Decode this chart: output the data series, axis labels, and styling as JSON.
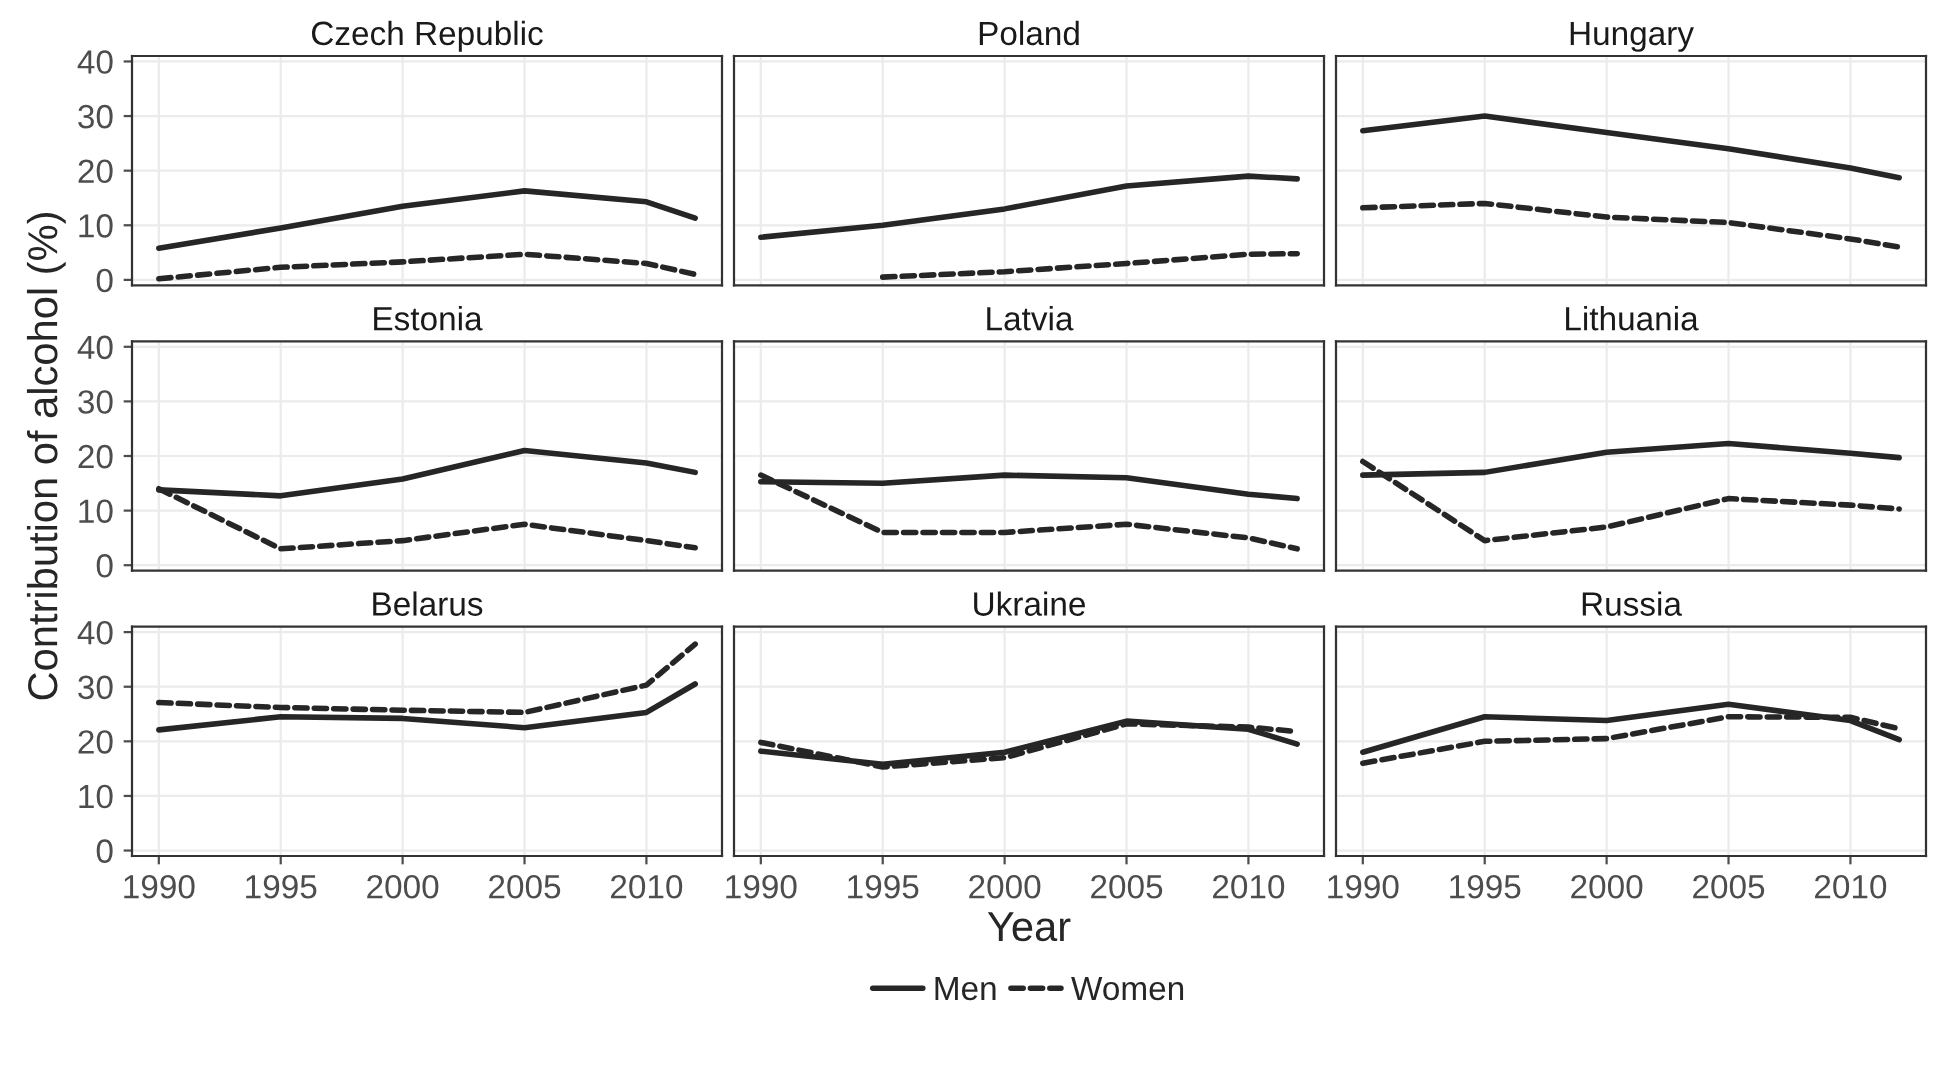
{
  "chart_data": [
    {
      "type": "line",
      "title": "Czech Republic",
      "legend": "bottom",
      "x": [
        1990,
        1995,
        2000,
        2005,
        2010,
        2012
      ],
      "xlim": [
        1988.9,
        2013.1
      ],
      "ylim": [
        -1,
        41
      ],
      "xticks": [
        1990,
        1995,
        2000,
        2005,
        2010
      ],
      "yticks": [
        0,
        10,
        20,
        30,
        40
      ],
      "tick_labels": "y",
      "grid": true,
      "series": [
        {
          "name": "Men",
          "color": "#262626",
          "line_style": "solid",
          "values": [
            5.8,
            9.5,
            13.5,
            16.3,
            14.3,
            11.3
          ]
        },
        {
          "name": "Women",
          "color": "#262626",
          "line_style": "dashed",
          "values": [
            0.2,
            2.3,
            3.3,
            4.7,
            3.0,
            1.0
          ]
        }
      ]
    },
    {
      "type": "line",
      "title": "Poland",
      "x": [
        1990,
        1995,
        2000,
        2005,
        2010,
        2012
      ],
      "xlim": [
        1988.9,
        2013.1
      ],
      "ylim": [
        -1,
        41
      ],
      "xticks": [
        1990,
        1995,
        2000,
        2005,
        2010
      ],
      "yticks": [
        0,
        10,
        20,
        30,
        40
      ],
      "tick_labels": false,
      "grid": true,
      "series": [
        {
          "color": "#262626",
          "line_style": "solid",
          "values": [
            7.8,
            10.0,
            13.0,
            17.2,
            19.0,
            18.5
          ]
        },
        {
          "color": "#262626",
          "line_style": "dashed",
          "values": [
            null,
            0.5,
            1.5,
            3.0,
            4.7,
            4.8
          ]
        }
      ]
    },
    {
      "type": "line",
      "title": "Hungary",
      "x": [
        1990,
        1995,
        2000,
        2005,
        2010,
        2012
      ],
      "xlim": [
        1988.9,
        2013.1
      ],
      "ylim": [
        -1,
        41
      ],
      "xticks": [
        1990,
        1995,
        2000,
        2005,
        2010
      ],
      "yticks": [
        0,
        10,
        20,
        30,
        40
      ],
      "tick_labels": false,
      "grid": true,
      "series": [
        {
          "color": "#262626",
          "line_style": "solid",
          "values": [
            27.3,
            30.0,
            27.0,
            24.0,
            20.5,
            18.7
          ]
        },
        {
          "color": "#262626",
          "line_style": "dashed",
          "values": [
            13.2,
            14.0,
            11.5,
            10.5,
            7.5,
            6.0
          ]
        }
      ]
    },
    {
      "type": "line",
      "title": "Estonia",
      "ylabel": "Contribution of alcohol (%)",
      "x": [
        1990,
        1995,
        2000,
        2005,
        2010,
        2012
      ],
      "xlim": [
        1988.9,
        2013.1
      ],
      "ylim": [
        -1,
        41
      ],
      "xticks": [
        1990,
        1995,
        2000,
        2005,
        2010
      ],
      "yticks": [
        0,
        10,
        20,
        30,
        40
      ],
      "tick_labels": "y",
      "grid": true,
      "series": [
        {
          "color": "#262626",
          "line_style": "solid",
          "values": [
            13.8,
            12.7,
            15.8,
            21.0,
            18.7,
            17.0
          ]
        },
        {
          "color": "#262626",
          "line_style": "dashed",
          "values": [
            14.0,
            3.0,
            4.5,
            7.5,
            4.5,
            3.2
          ]
        }
      ]
    },
    {
      "type": "line",
      "title": "Latvia",
      "x": [
        1990,
        1995,
        2000,
        2005,
        2010,
        2012
      ],
      "xlim": [
        1988.9,
        2013.1
      ],
      "ylim": [
        -1,
        41
      ],
      "xticks": [
        1990,
        1995,
        2000,
        2005,
        2010
      ],
      "yticks": [
        0,
        10,
        20,
        30,
        40
      ],
      "tick_labels": false,
      "grid": true,
      "series": [
        {
          "color": "#262626",
          "line_style": "solid",
          "values": [
            15.3,
            15.0,
            16.5,
            16.0,
            13.0,
            12.2
          ]
        },
        {
          "color": "#262626",
          "line_style": "dashed",
          "values": [
            16.5,
            6.0,
            6.0,
            7.5,
            5.0,
            3.0
          ]
        }
      ]
    },
    {
      "type": "line",
      "title": "Lithuania",
      "x": [
        1990,
        1995,
        2000,
        2005,
        2010,
        2012
      ],
      "xlim": [
        1988.9,
        2013.1
      ],
      "ylim": [
        -1,
        41
      ],
      "xticks": [
        1990,
        1995,
        2000,
        2005,
        2010
      ],
      "yticks": [
        0,
        10,
        20,
        30,
        40
      ],
      "tick_labels": false,
      "grid": true,
      "series": [
        {
          "color": "#262626",
          "line_style": "solid",
          "values": [
            16.5,
            17.0,
            20.7,
            22.3,
            20.5,
            19.7
          ]
        },
        {
          "color": "#262626",
          "line_style": "dashed",
          "values": [
            19.0,
            4.5,
            7.0,
            12.2,
            11.0,
            10.3
          ]
        }
      ]
    },
    {
      "type": "line",
      "title": "Belarus",
      "x": [
        1990,
        1995,
        2000,
        2005,
        2010,
        2012
      ],
      "xlim": [
        1988.9,
        2013.1
      ],
      "ylim": [
        -1,
        41
      ],
      "xticks": [
        1990,
        1995,
        2000,
        2005,
        2010
      ],
      "yticks": [
        0,
        10,
        20,
        30,
        40
      ],
      "grid": true,
      "series": [
        {
          "color": "#262626",
          "line_style": "solid",
          "values": [
            22.1,
            24.5,
            24.2,
            22.5,
            25.3,
            30.5
          ]
        },
        {
          "color": "#262626",
          "line_style": "dashed",
          "values": [
            27.1,
            26.2,
            25.7,
            25.3,
            30.3,
            37.8
          ]
        }
      ]
    },
    {
      "type": "line",
      "title": "Ukraine",
      "xlabel": "Year",
      "x": [
        1990,
        1995,
        2000,
        2005,
        2010,
        2012
      ],
      "xlim": [
        1988.9,
        2013.1
      ],
      "ylim": [
        -1,
        41
      ],
      "xticks": [
        1990,
        1995,
        2000,
        2005,
        2010
      ],
      "yticks": [
        0,
        10,
        20,
        30,
        40
      ],
      "tick_labels": "x",
      "grid": true,
      "series": [
        {
          "color": "#262626",
          "line_style": "solid",
          "values": [
            18.2,
            15.8,
            18.0,
            23.7,
            22.2,
            19.5
          ]
        },
        {
          "color": "#262626",
          "line_style": "dashed",
          "values": [
            19.8,
            15.3,
            17.0,
            23.2,
            22.6,
            21.8
          ]
        }
      ]
    },
    {
      "type": "line",
      "title": "Russia",
      "x": [
        1990,
        1995,
        2000,
        2005,
        2010,
        2012
      ],
      "xlim": [
        1988.9,
        2013.1
      ],
      "ylim": [
        -1,
        41
      ],
      "xticks": [
        1990,
        1995,
        2000,
        2005,
        2010
      ],
      "yticks": [
        0,
        10,
        20,
        30,
        40
      ],
      "tick_labels": "x",
      "grid": true,
      "series": [
        {
          "color": "#262626",
          "line_style": "solid",
          "values": [
            18.0,
            24.5,
            23.8,
            26.8,
            23.8,
            20.3
          ]
        },
        {
          "color": "#262626",
          "line_style": "dashed",
          "values": [
            16.0,
            20.0,
            20.5,
            24.5,
            24.4,
            22.3
          ]
        }
      ]
    }
  ]
}
